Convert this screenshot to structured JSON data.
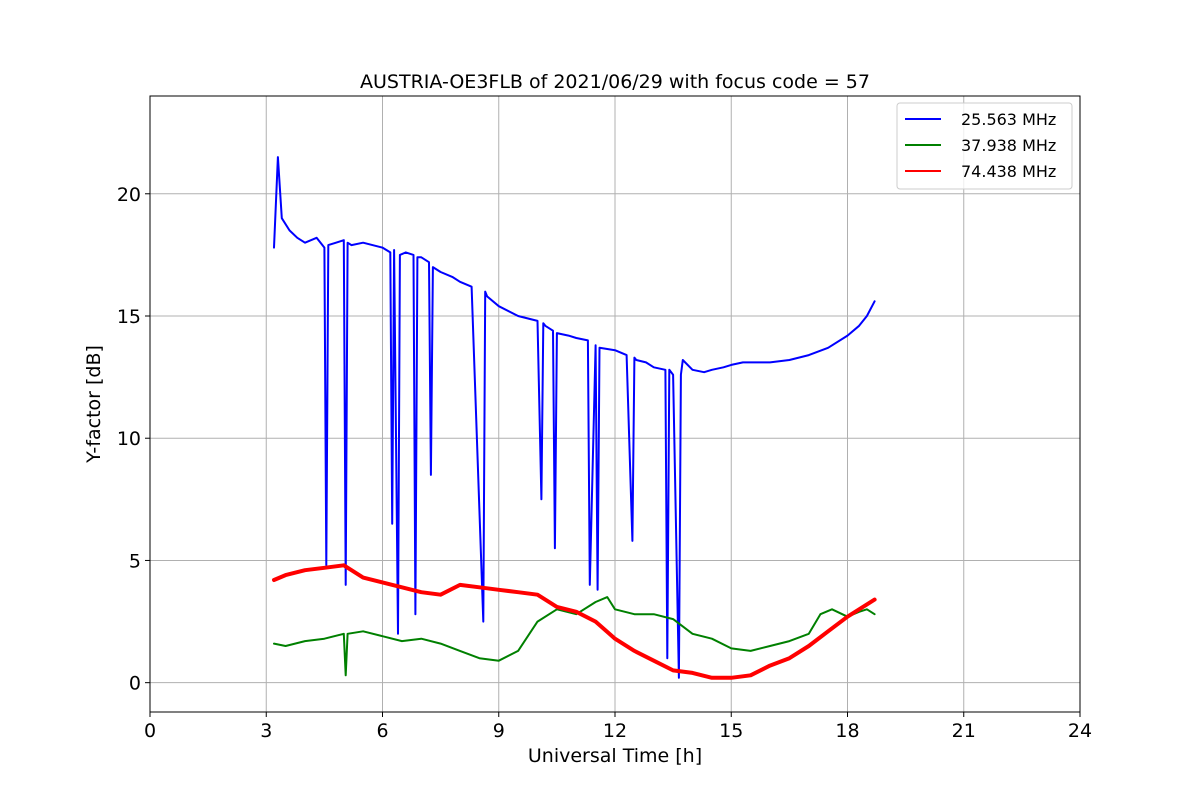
{
  "chart_data": {
    "type": "line",
    "title": "AUSTRIA-OE3FLB of 2021/06/29 with focus code = 57",
    "xlabel": "Universal Time [h]",
    "ylabel": "Y-factor [dB]",
    "xlim": [
      0,
      24
    ],
    "ylim": [
      -1.2,
      24
    ],
    "xticks": [
      0,
      3,
      6,
      9,
      12,
      15,
      18,
      21,
      24
    ],
    "yticks": [
      0,
      5,
      10,
      15,
      20
    ],
    "grid": true,
    "legend_position": "top-right",
    "series": [
      {
        "name": "25.563 MHz",
        "color": "#0000ff",
        "x": [
          3.2,
          3.3,
          3.4,
          3.6,
          3.8,
          4.0,
          4.3,
          4.5,
          4.55,
          4.6,
          4.8,
          5.0,
          5.05,
          5.1,
          5.2,
          5.5,
          6.0,
          6.2,
          6.25,
          6.3,
          6.4,
          6.45,
          6.6,
          6.8,
          6.85,
          6.9,
          7.0,
          7.2,
          7.25,
          7.3,
          7.5,
          7.8,
          8.0,
          8.3,
          8.6,
          8.65,
          8.7,
          9.0,
          9.5,
          10.0,
          10.1,
          10.15,
          10.2,
          10.4,
          10.45,
          10.5,
          10.8,
          11.0,
          11.3,
          11.35,
          11.5,
          11.55,
          11.6,
          12.0,
          12.3,
          12.45,
          12.5,
          12.55,
          12.8,
          13.0,
          13.3,
          13.35,
          13.4,
          13.5,
          13.65,
          13.7,
          13.75,
          14.0,
          14.3,
          14.5,
          14.8,
          15.0,
          15.3,
          15.6,
          16.0,
          16.5,
          17.0,
          17.5,
          18.0,
          18.3,
          18.5,
          18.7
        ],
        "y": [
          17.8,
          21.5,
          19.0,
          18.5,
          18.2,
          18.0,
          18.2,
          17.8,
          4.8,
          17.9,
          18.0,
          18.1,
          4.0,
          18.0,
          17.9,
          18.0,
          17.8,
          17.6,
          6.5,
          17.7,
          2.0,
          17.5,
          17.6,
          17.5,
          2.8,
          17.4,
          17.4,
          17.2,
          8.5,
          17.0,
          16.8,
          16.6,
          16.4,
          16.2,
          2.5,
          16.0,
          15.8,
          15.4,
          15.0,
          14.8,
          7.5,
          14.7,
          14.6,
          14.4,
          5.5,
          14.3,
          14.2,
          14.1,
          14.0,
          4.0,
          13.8,
          3.8,
          13.7,
          13.6,
          13.4,
          5.8,
          13.3,
          13.2,
          13.1,
          12.9,
          12.8,
          1.0,
          12.8,
          12.6,
          0.2,
          12.6,
          13.2,
          12.8,
          12.7,
          12.8,
          12.9,
          13.0,
          13.1,
          13.1,
          13.1,
          13.2,
          13.4,
          13.7,
          14.2,
          14.6,
          15.0,
          15.6
        ]
      },
      {
        "name": "37.938 MHz",
        "color": "#008000",
        "x": [
          3.2,
          3.5,
          4.0,
          4.5,
          5.0,
          5.05,
          5.1,
          5.5,
          6.0,
          6.5,
          7.0,
          7.5,
          8.0,
          8.5,
          9.0,
          9.5,
          10.0,
          10.5,
          11.0,
          11.5,
          11.8,
          12.0,
          12.5,
          13.0,
          13.5,
          14.0,
          14.5,
          15.0,
          15.5,
          16.0,
          16.5,
          17.0,
          17.3,
          17.6,
          18.0,
          18.3,
          18.5,
          18.7
        ],
        "y": [
          1.6,
          1.5,
          1.7,
          1.8,
          2.0,
          0.3,
          2.0,
          2.1,
          1.9,
          1.7,
          1.8,
          1.6,
          1.3,
          1.0,
          0.9,
          1.3,
          2.5,
          3.0,
          2.8,
          3.3,
          3.5,
          3.0,
          2.8,
          2.8,
          2.6,
          2.0,
          1.8,
          1.4,
          1.3,
          1.5,
          1.7,
          2.0,
          2.8,
          3.0,
          2.7,
          2.9,
          3.0,
          2.8
        ]
      },
      {
        "name": "74.438 MHz",
        "color": "#ff0000",
        "x": [
          3.2,
          3.5,
          4.0,
          4.5,
          5.0,
          5.2,
          5.5,
          6.0,
          6.5,
          7.0,
          7.5,
          8.0,
          8.5,
          9.0,
          9.5,
          10.0,
          10.5,
          11.0,
          11.5,
          12.0,
          12.5,
          13.0,
          13.5,
          14.0,
          14.5,
          15.0,
          15.5,
          16.0,
          16.5,
          17.0,
          17.5,
          18.0,
          18.5,
          18.7
        ],
        "y": [
          4.2,
          4.4,
          4.6,
          4.7,
          4.8,
          4.6,
          4.3,
          4.1,
          3.9,
          3.7,
          3.6,
          4.0,
          3.9,
          3.8,
          3.7,
          3.6,
          3.1,
          2.9,
          2.5,
          1.8,
          1.3,
          0.9,
          0.5,
          0.4,
          0.2,
          0.2,
          0.3,
          0.7,
          1.0,
          1.5,
          2.1,
          2.7,
          3.2,
          3.4
        ]
      }
    ]
  }
}
